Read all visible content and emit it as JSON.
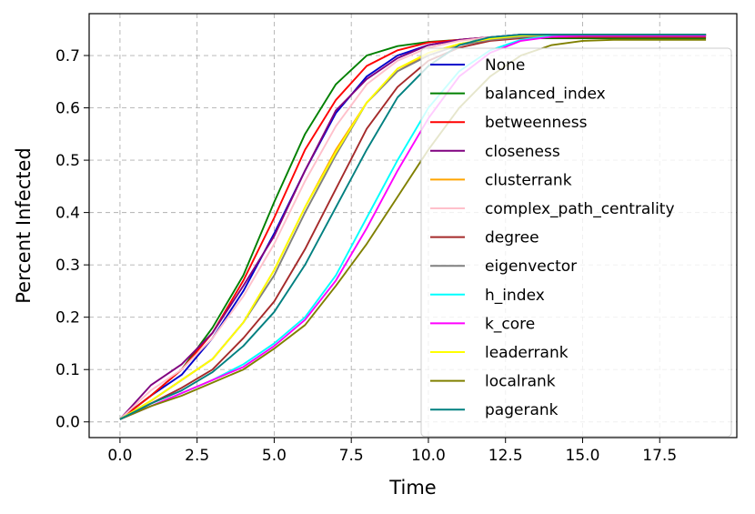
{
  "chart_data": {
    "type": "line",
    "title": "",
    "xlabel": "Time",
    "ylabel": "Percent Infected",
    "xlim": [
      -1.0,
      20.0
    ],
    "ylim": [
      -0.03,
      0.78
    ],
    "xticks": [
      "0.0",
      "2.5",
      "5.0",
      "7.5",
      "10.0",
      "12.5",
      "15.0",
      "17.5"
    ],
    "xtick_values": [
      0,
      2.5,
      5,
      7.5,
      10,
      12.5,
      15,
      17.5
    ],
    "yticks": [
      "0.0",
      "0.1",
      "0.2",
      "0.3",
      "0.4",
      "0.5",
      "0.6",
      "0.7"
    ],
    "ytick_values": [
      0,
      0.1,
      0.2,
      0.3,
      0.4,
      0.5,
      0.6,
      0.7
    ],
    "grid": true,
    "legend_position": "right",
    "x": [
      0,
      1,
      2,
      3,
      4,
      5,
      6,
      7,
      8,
      9,
      10,
      11,
      12,
      13,
      14,
      15,
      16,
      17,
      18,
      19
    ],
    "series": [
      {
        "name": "None",
        "color": "#0000cc",
        "values": [
          0.005,
          0.05,
          0.09,
          0.16,
          0.25,
          0.36,
          0.48,
          0.59,
          0.66,
          0.7,
          0.72,
          0.73,
          0.735,
          0.74,
          0.74,
          0.74,
          0.74,
          0.74,
          0.74,
          0.74
        ]
      },
      {
        "name": "balanced_index",
        "color": "#008000",
        "values": [
          0.005,
          0.05,
          0.1,
          0.18,
          0.28,
          0.42,
          0.55,
          0.645,
          0.7,
          0.718,
          0.726,
          0.73,
          0.732,
          0.733,
          0.733,
          0.733,
          0.733,
          0.733,
          0.733,
          0.733
        ]
      },
      {
        "name": "betweenness",
        "color": "#ff0000",
        "values": [
          0.005,
          0.05,
          0.1,
          0.17,
          0.27,
          0.39,
          0.52,
          0.615,
          0.68,
          0.71,
          0.725,
          0.73,
          0.735,
          0.738,
          0.738,
          0.738,
          0.738,
          0.738,
          0.738,
          0.738
        ]
      },
      {
        "name": "closeness",
        "color": "#800080",
        "values": [
          0.005,
          0.07,
          0.11,
          0.17,
          0.26,
          0.355,
          0.48,
          0.595,
          0.655,
          0.695,
          0.72,
          0.73,
          0.735,
          0.74,
          0.74,
          0.74,
          0.74,
          0.74,
          0.74,
          0.74
        ]
      },
      {
        "name": "clusterrank",
        "color": "#ffa500",
        "values": [
          0.005,
          0.04,
          0.08,
          0.12,
          0.19,
          0.29,
          0.41,
          0.52,
          0.61,
          0.67,
          0.705,
          0.722,
          0.732,
          0.738,
          0.74,
          0.74,
          0.74,
          0.74,
          0.74,
          0.74
        ]
      },
      {
        "name": "complex_path_centrality",
        "color": "#ffc0cb",
        "values": [
          0.005,
          0.06,
          0.1,
          0.16,
          0.24,
          0.34,
          0.46,
          0.565,
          0.645,
          0.69,
          0.715,
          0.728,
          0.735,
          0.738,
          0.74,
          0.74,
          0.74,
          0.74,
          0.74,
          0.74
        ]
      },
      {
        "name": "degree",
        "color": "#a52a2a",
        "values": [
          0.005,
          0.035,
          0.065,
          0.1,
          0.16,
          0.23,
          0.33,
          0.445,
          0.56,
          0.64,
          0.69,
          0.715,
          0.728,
          0.733,
          0.735,
          0.735,
          0.735,
          0.735,
          0.735,
          0.735
        ]
      },
      {
        "name": "eigenvector",
        "color": "#808080",
        "values": [
          0.005,
          0.04,
          0.08,
          0.12,
          0.19,
          0.28,
          0.4,
          0.51,
          0.61,
          0.67,
          0.7,
          0.72,
          0.73,
          0.735,
          0.738,
          0.738,
          0.738,
          0.738,
          0.738,
          0.738
        ]
      },
      {
        "name": "h_index",
        "color": "#00ffff",
        "values": [
          0.005,
          0.03,
          0.055,
          0.08,
          0.11,
          0.15,
          0.2,
          0.28,
          0.39,
          0.5,
          0.6,
          0.67,
          0.71,
          0.73,
          0.738,
          0.74,
          0.74,
          0.74,
          0.74,
          0.74
        ]
      },
      {
        "name": "k_core",
        "color": "#ff00ff",
        "values": [
          0.005,
          0.03,
          0.055,
          0.08,
          0.105,
          0.145,
          0.195,
          0.27,
          0.37,
          0.48,
          0.58,
          0.66,
          0.705,
          0.728,
          0.736,
          0.738,
          0.738,
          0.738,
          0.738,
          0.738
        ]
      },
      {
        "name": "leaderrank",
        "color": "#ffff00",
        "values": [
          0.005,
          0.04,
          0.08,
          0.12,
          0.19,
          0.29,
          0.41,
          0.515,
          0.61,
          0.675,
          0.705,
          0.722,
          0.732,
          0.738,
          0.74,
          0.74,
          0.74,
          0.74,
          0.74,
          0.74
        ]
      },
      {
        "name": "localrank",
        "color": "#808000",
        "values": [
          0.005,
          0.03,
          0.05,
          0.075,
          0.1,
          0.14,
          0.185,
          0.26,
          0.34,
          0.43,
          0.52,
          0.6,
          0.66,
          0.7,
          0.72,
          0.728,
          0.73,
          0.73,
          0.73,
          0.73
        ]
      },
      {
        "name": "pagerank",
        "color": "#008080",
        "values": [
          0.005,
          0.035,
          0.06,
          0.095,
          0.145,
          0.21,
          0.3,
          0.41,
          0.52,
          0.62,
          0.68,
          0.72,
          0.735,
          0.74,
          0.74,
          0.74,
          0.74,
          0.74,
          0.74,
          0.74
        ]
      }
    ]
  }
}
